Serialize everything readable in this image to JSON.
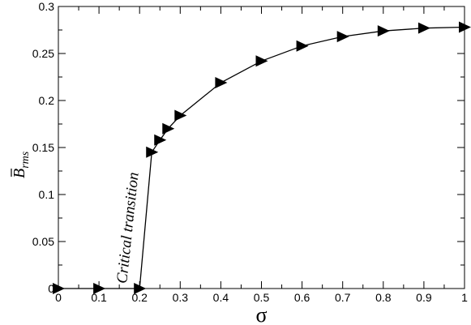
{
  "chart_data": {
    "type": "line",
    "xlabel": "σ",
    "ylabel": {
      "main": "B",
      "subscript": "rms"
    },
    "xlim": [
      0,
      1
    ],
    "ylim": [
      0,
      0.3
    ],
    "xticks": [
      0,
      0.1,
      0.2,
      0.3,
      0.4,
      0.5,
      0.6,
      0.7,
      0.8,
      0.9,
      1
    ],
    "xtick_labels": [
      "0",
      "0.1",
      "0.2",
      "0.3",
      "0.4",
      "0.5",
      "0.6",
      "0.7",
      "0.8",
      "0.9",
      "1"
    ],
    "yticks": [
      0,
      0.05,
      0.1,
      0.15,
      0.2,
      0.25,
      0.3
    ],
    "ytick_labels": [
      "0",
      "0.05",
      "0.1",
      "0.15",
      "0.2",
      "0.25",
      "0.3"
    ],
    "grid": false,
    "marker": "right-triangle",
    "annotation": {
      "text": "Critical transition",
      "x": 0.2,
      "y": 0.005
    },
    "series": [
      {
        "x": [
          0,
          0.1,
          0.2,
          0.23,
          0.25,
          0.27,
          0.3,
          0.4,
          0.5,
          0.6,
          0.7,
          0.8,
          0.9,
          1.0
        ],
        "values": [
          0,
          0,
          0,
          0.145,
          0.158,
          0.17,
          0.184,
          0.219,
          0.242,
          0.258,
          0.268,
          0.274,
          0.277,
          0.278
        ]
      }
    ]
  }
}
